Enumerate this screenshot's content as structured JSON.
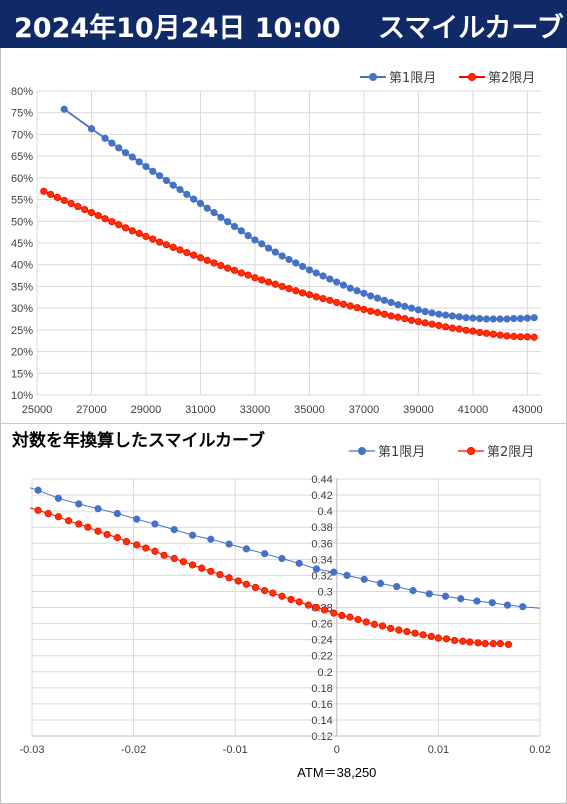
{
  "banner": {
    "date_time": "2024年10月24日 10:00",
    "title": "スマイルカーブ"
  },
  "colors": {
    "series1": "#4472c4",
    "series2": "#ff0000",
    "series2_marker": "#ff3300",
    "banner": "#0f2a66",
    "grid": "#d9d9d9"
  },
  "chart_data": [
    {
      "type": "line",
      "title": "",
      "xlabel": "",
      "ylabel": "",
      "xlim": [
        25000,
        43500
      ],
      "ylim": [
        10,
        80
      ],
      "y_format": "percent",
      "grid": true,
      "legend_position": "top-right",
      "x_ticks": [
        "25000",
        "27000",
        "29000",
        "31000",
        "33000",
        "35000",
        "37000",
        "39000",
        "41000",
        "43000"
      ],
      "y_ticks": [
        "10%",
        "15%",
        "20%",
        "25%",
        "30%",
        "35%",
        "40%",
        "45%",
        "50%",
        "55%",
        "60%",
        "65%",
        "70%",
        "75%",
        "80%"
      ],
      "series": [
        {
          "name": "第1限月",
          "x": [
            26000,
            27000,
            27500,
            27750,
            28000,
            28250,
            28500,
            28750,
            29000,
            29250,
            29500,
            29750,
            30000,
            30250,
            30500,
            30750,
            31000,
            31250,
            31500,
            31750,
            32000,
            32250,
            32500,
            32750,
            33000,
            33250,
            33500,
            33750,
            34000,
            34250,
            34500,
            34750,
            35000,
            35250,
            35500,
            35750,
            36000,
            36250,
            36500,
            36750,
            37000,
            37250,
            37500,
            37750,
            38000,
            38250,
            38500,
            38750,
            39000,
            39250,
            39500,
            39750,
            40000,
            40250,
            40500,
            40750,
            41000,
            41250,
            41500,
            41750,
            42000,
            42250,
            42500,
            42750,
            43000,
            43250
          ],
          "values": [
            75.8,
            71.3,
            69.1,
            68.0,
            66.9,
            65.8,
            64.8,
            63.7,
            62.6,
            61.5,
            60.5,
            59.4,
            58.3,
            57.3,
            56.2,
            55.1,
            54.1,
            53.0,
            52.0,
            50.9,
            49.9,
            48.8,
            47.8,
            46.7,
            45.7,
            44.8,
            43.8,
            42.9,
            42.0,
            41.2,
            40.4,
            39.6,
            38.8,
            38.1,
            37.4,
            36.7,
            36.0,
            35.3,
            34.6,
            34.0,
            33.4,
            32.8,
            32.3,
            31.8,
            31.3,
            30.8,
            30.4,
            30.0,
            29.6,
            29.2,
            28.9,
            28.6,
            28.4,
            28.2,
            28.0,
            27.8,
            27.7,
            27.6,
            27.5,
            27.5,
            27.5,
            27.5,
            27.6,
            27.6,
            27.7,
            27.8
          ]
        },
        {
          "name": "第2限月",
          "x": [
            25250,
            25500,
            25750,
            26000,
            26250,
            26500,
            26750,
            27000,
            27250,
            27500,
            27750,
            28000,
            28250,
            28500,
            28750,
            29000,
            29250,
            29500,
            29750,
            30000,
            30250,
            30500,
            30750,
            31000,
            31250,
            31500,
            31750,
            32000,
            32250,
            32500,
            32750,
            33000,
            33250,
            33500,
            33750,
            34000,
            34250,
            34500,
            34750,
            35000,
            35250,
            35500,
            35750,
            36000,
            36250,
            36500,
            36750,
            37000,
            37250,
            37500,
            37750,
            38000,
            38250,
            38500,
            38750,
            39000,
            39250,
            39500,
            39750,
            40000,
            40250,
            40500,
            40750,
            41000,
            41250,
            41500,
            41750,
            42000,
            42250,
            42500,
            42750,
            43000,
            43250
          ],
          "values": [
            56.9,
            56.2,
            55.5,
            54.8,
            54.1,
            53.4,
            52.7,
            52.0,
            51.3,
            50.6,
            49.9,
            49.2,
            48.5,
            47.8,
            47.2,
            46.5,
            45.9,
            45.2,
            44.6,
            44.0,
            43.4,
            42.8,
            42.2,
            41.6,
            41.0,
            40.4,
            39.8,
            39.2,
            38.7,
            38.1,
            37.6,
            37.0,
            36.5,
            36.0,
            35.5,
            35.0,
            34.5,
            34.0,
            33.5,
            33.1,
            32.6,
            32.2,
            31.8,
            31.3,
            30.9,
            30.5,
            30.1,
            29.7,
            29.3,
            29.0,
            28.6,
            28.2,
            27.9,
            27.6,
            27.2,
            26.9,
            26.6,
            26.3,
            26.0,
            25.7,
            25.4,
            25.2,
            24.9,
            24.7,
            24.4,
            24.2,
            24.0,
            23.8,
            23.6,
            23.5,
            23.4,
            23.4,
            23.3
          ]
        }
      ]
    },
    {
      "type": "scatter",
      "title": "対数を年換算したスマイルカーブ",
      "xlabel": "ATM＝38,250",
      "ylabel": "",
      "xlim": [
        -0.03,
        0.02
      ],
      "ylim": [
        0.12,
        0.44
      ],
      "grid": true,
      "legend_position": "top-right",
      "x_ticks": [
        "-0.03",
        "-0.02",
        "-0.01",
        "0",
        "0.01",
        "0.02"
      ],
      "y_ticks": [
        "0.12",
        "0.14",
        "0.16",
        "0.18",
        "0.2",
        "0.22",
        "0.24",
        "0.26",
        "0.28",
        "0.3",
        "0.32",
        "0.34",
        "0.36",
        "0.38",
        "0.4",
        "0.42",
        "0.44"
      ],
      "series": [
        {
          "name": "第1限月",
          "x": [
            -0.0294,
            -0.0274,
            -0.0254,
            -0.0235,
            -0.0216,
            -0.0197,
            -0.0179,
            -0.016,
            -0.0142,
            -0.0124,
            -0.0106,
            -0.0089,
            -0.0071,
            -0.0054,
            -0.0037,
            -0.002,
            -0.0003,
            0.001,
            0.0027,
            0.0043,
            0.0059,
            0.0075,
            0.0091,
            0.0107,
            0.0122,
            0.0138,
            0.0153,
            0.0168,
            0.0183
          ],
          "values": [
            0.426,
            0.416,
            0.409,
            0.403,
            0.397,
            0.39,
            0.384,
            0.377,
            0.37,
            0.365,
            0.359,
            0.353,
            0.347,
            0.341,
            0.335,
            0.328,
            0.324,
            0.32,
            0.315,
            0.31,
            0.306,
            0.301,
            0.297,
            0.294,
            0.291,
            0.288,
            0.286,
            0.283,
            0.281
          ]
        },
        {
          "name": "第2限月",
          "x": [
            -0.0294,
            -0.0284,
            -0.0274,
            -0.0264,
            -0.0254,
            -0.0245,
            -0.0235,
            -0.0226,
            -0.0216,
            -0.0207,
            -0.0197,
            -0.0188,
            -0.0179,
            -0.017,
            -0.016,
            -0.0151,
            -0.0142,
            -0.0133,
            -0.0124,
            -0.0115,
            -0.0106,
            -0.0097,
            -0.0089,
            -0.008,
            -0.0071,
            -0.0063,
            -0.0054,
            -0.0045,
            -0.0037,
            -0.0028,
            -0.002,
            -0.0012,
            -0.0003,
            0.0005,
            0.0013,
            0.0021,
            0.0029,
            0.0037,
            0.0045,
            0.0053,
            0.0061,
            0.0069,
            0.0077,
            0.0085,
            0.0093,
            0.01,
            0.0108,
            0.0116,
            0.0124,
            0.0131,
            0.0139,
            0.0146,
            0.0154,
            0.0161,
            0.0169
          ],
          "values": [
            0.401,
            0.397,
            0.393,
            0.388,
            0.384,
            0.38,
            0.375,
            0.371,
            0.367,
            0.362,
            0.358,
            0.354,
            0.35,
            0.345,
            0.341,
            0.337,
            0.333,
            0.329,
            0.325,
            0.321,
            0.317,
            0.313,
            0.309,
            0.305,
            0.301,
            0.298,
            0.294,
            0.29,
            0.287,
            0.283,
            0.28,
            0.277,
            0.273,
            0.27,
            0.268,
            0.265,
            0.262,
            0.259,
            0.257,
            0.254,
            0.252,
            0.25,
            0.248,
            0.246,
            0.244,
            0.242,
            0.241,
            0.239,
            0.238,
            0.237,
            0.236,
            0.235,
            0.235,
            0.235,
            0.234
          ]
        }
      ]
    }
  ]
}
